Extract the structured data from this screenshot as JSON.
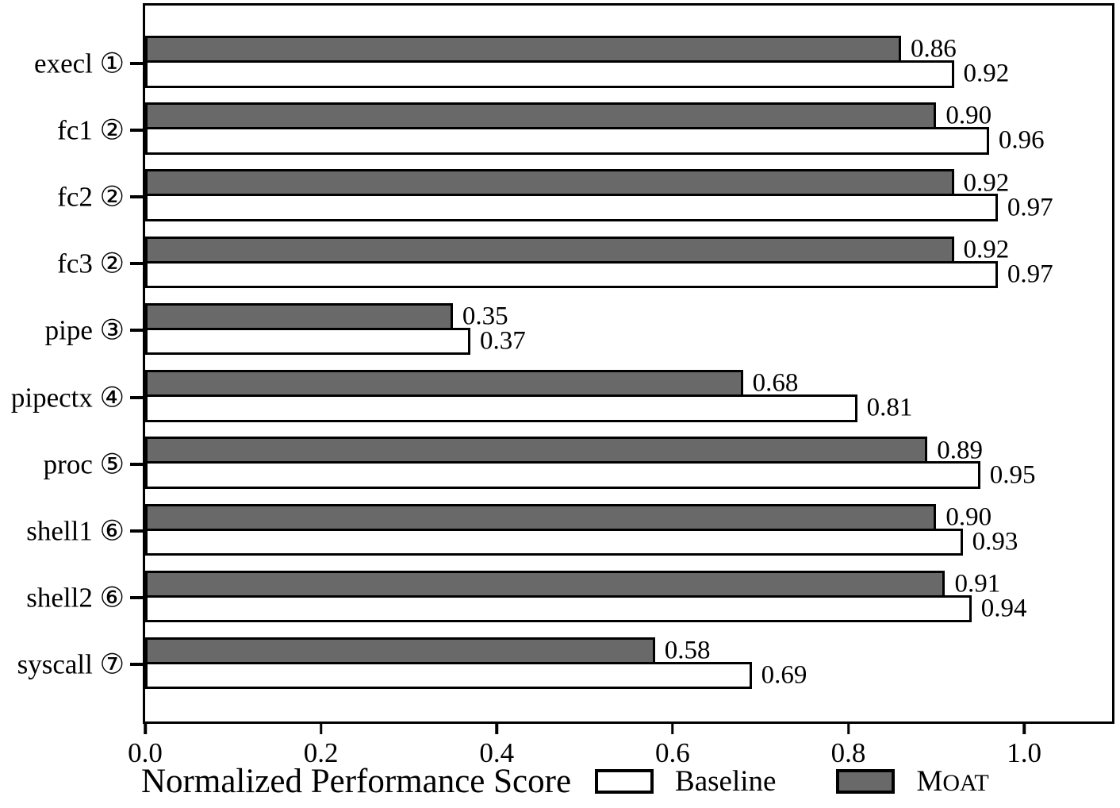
{
  "chart_data": {
    "type": "bar",
    "orientation": "horizontal",
    "title": "",
    "xlabel": "Normalized Performance Score",
    "ylabel": "",
    "xlim": [
      0,
      1.1
    ],
    "xticks": {
      "values": [
        0.0,
        0.2,
        0.4,
        0.6,
        0.8,
        1.0
      ],
      "labels": [
        "0.0",
        "0.2",
        "0.4",
        "0.6",
        "0.8",
        "1.0"
      ]
    },
    "grid": false,
    "legend_position": "bottom",
    "categories": [
      {
        "name": "execl",
        "badge": "①"
      },
      {
        "name": "fc1",
        "badge": "②"
      },
      {
        "name": "fc2",
        "badge": "②"
      },
      {
        "name": "fc3",
        "badge": "②"
      },
      {
        "name": "pipe",
        "badge": "③"
      },
      {
        "name": "pipectx",
        "badge": "④"
      },
      {
        "name": "proc",
        "badge": "⑤"
      },
      {
        "name": "shell1",
        "badge": "⑥"
      },
      {
        "name": "shell2",
        "badge": "⑥"
      },
      {
        "name": "syscall",
        "badge": "⑦"
      }
    ],
    "series": [
      {
        "name": "MOAT",
        "color": "#696969",
        "values": [
          0.86,
          0.9,
          0.92,
          0.92,
          0.35,
          0.68,
          0.89,
          0.9,
          0.91,
          0.58
        ],
        "labels": [
          "0.86",
          "0.90",
          "0.92",
          "0.92",
          "0.35",
          "0.68",
          "0.89",
          "0.90",
          "0.91",
          "0.58"
        ]
      },
      {
        "name": "Baseline",
        "color": "#ffffff",
        "values": [
          0.92,
          0.96,
          0.97,
          0.97,
          0.37,
          0.81,
          0.95,
          0.93,
          0.94,
          0.69
        ],
        "labels": [
          "0.92",
          "0.96",
          "0.97",
          "0.97",
          "0.37",
          "0.81",
          "0.95",
          "0.93",
          "0.94",
          "0.69"
        ]
      }
    ],
    "legend": [
      {
        "label": "Baseline",
        "color": "#ffffff",
        "smallcaps": false
      },
      {
        "label": "MOAT",
        "color": "#696969",
        "smallcaps": true
      }
    ],
    "colors": {
      "bar_edge": "#000000",
      "moat_fill": "#696969",
      "baseline_fill": "#ffffff",
      "text": "#000000",
      "background": "#ffffff"
    }
  }
}
